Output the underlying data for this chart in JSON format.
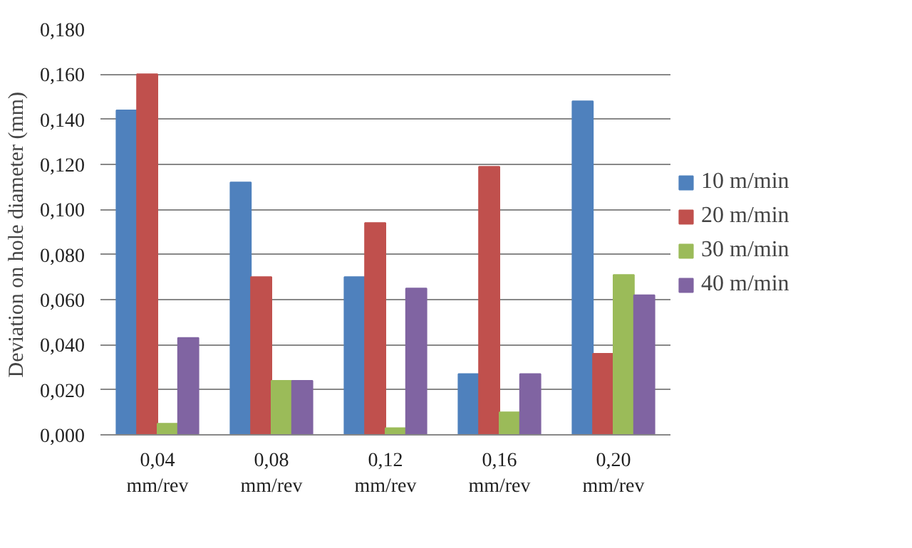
{
  "chart_data": {
    "type": "bar",
    "ylabel": "Deviation on hole diameter  (mm)",
    "categories": [
      "0,04\nmm/rev",
      "0,08\nmm/rev",
      "0,12\nmm/rev",
      "0,16\nmm/rev",
      "0,20\nmm/rev"
    ],
    "series": [
      {
        "name": "10 m/min",
        "color": "#4f81bd",
        "values": [
          0.144,
          0.112,
          0.07,
          0.027,
          0.148
        ]
      },
      {
        "name": "20 m/min",
        "color": "#c0504d",
        "values": [
          0.16,
          0.07,
          0.094,
          0.119,
          0.036
        ]
      },
      {
        "name": "30 m/min",
        "color": "#9bbb59",
        "values": [
          0.005,
          0.024,
          0.003,
          0.01,
          0.071
        ]
      },
      {
        "name": "40 m/min",
        "color": "#8064a2",
        "values": [
          0.043,
          0.024,
          0.065,
          0.027,
          0.062
        ]
      }
    ],
    "ylim": [
      0,
      0.18
    ],
    "yticks": [
      {
        "value": 0,
        "label": "0,000"
      },
      {
        "value": 0.02,
        "label": "0,020"
      },
      {
        "value": 0.04,
        "label": "0,040"
      },
      {
        "value": 0.06,
        "label": "0,060"
      },
      {
        "value": 0.08,
        "label": "0,080"
      },
      {
        "value": 0.1,
        "label": "0,100"
      },
      {
        "value": 0.12,
        "label": "0,120"
      },
      {
        "value": 0.14,
        "label": "0,140"
      },
      {
        "value": 0.16,
        "label": "0,160"
      },
      {
        "value": 0.18,
        "label": "0,180"
      }
    ],
    "grid": "y",
    "legend": "right"
  }
}
